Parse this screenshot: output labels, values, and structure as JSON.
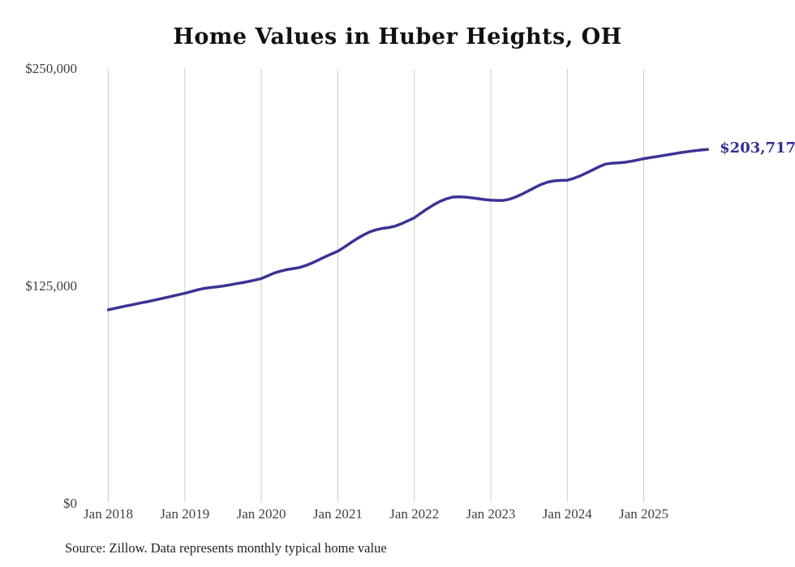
{
  "page": {
    "title": "Home Values in Huber Heights, OH",
    "source": "Source: Zillow. Data represents monthly typical home value"
  },
  "chart_data": {
    "type": "line",
    "title": "Home Values in Huber Heights, OH",
    "series_name": "Typical home value",
    "unit": "USD",
    "x_start": "2018-01",
    "x_interval": "month",
    "x_tick_labels": [
      "Jan 2018",
      "Jan 2019",
      "Jan 2020",
      "Jan 2021",
      "Jan 2022",
      "Jan 2023",
      "Jan 2024",
      "Jan 2025"
    ],
    "y_ticks": [
      {
        "value": 0,
        "label": "$0"
      },
      {
        "value": 125000,
        "label": "$125,000"
      },
      {
        "value": 250000,
        "label": "$250,000"
      }
    ],
    "ylim": [
      0,
      250000
    ],
    "grid": "vertical-only",
    "legend_position": "none",
    "end_label": "$203,717",
    "end_value": 203717,
    "colors": {
      "line": "#3a3494",
      "grid": "#cccccc",
      "end_label": "#33308d",
      "title": "#111111",
      "axis_text": "#404040",
      "source_text": "#1f1f1f"
    },
    "values": [
      111500,
      112300,
      113100,
      113900,
      114600,
      115400,
      116100,
      116900,
      117700,
      118500,
      119300,
      120200,
      121000,
      122000,
      123000,
      123800,
      124300,
      124700,
      125200,
      125800,
      126500,
      127100,
      127800,
      128600,
      129500,
      131000,
      132600,
      133700,
      134600,
      135200,
      135800,
      137000,
      138500,
      140200,
      142000,
      143600,
      145200,
      147500,
      150000,
      152400,
      154500,
      156300,
      157500,
      158300,
      158800,
      159600,
      161000,
      162700,
      164400,
      167000,
      169500,
      171800,
      173800,
      175300,
      176300,
      176500,
      176300,
      175900,
      175400,
      174900,
      174600,
      174400,
      174400,
      175200,
      176500,
      178200,
      180100,
      182000,
      183700,
      185000,
      185700,
      185900,
      186000,
      187100,
      188500,
      190200,
      192000,
      193800,
      195300,
      195800,
      196000,
      196300,
      196900,
      197600,
      198400,
      199000,
      199600,
      200200,
      200800,
      201400,
      202000,
      202500,
      203000,
      203400,
      203717
    ]
  }
}
